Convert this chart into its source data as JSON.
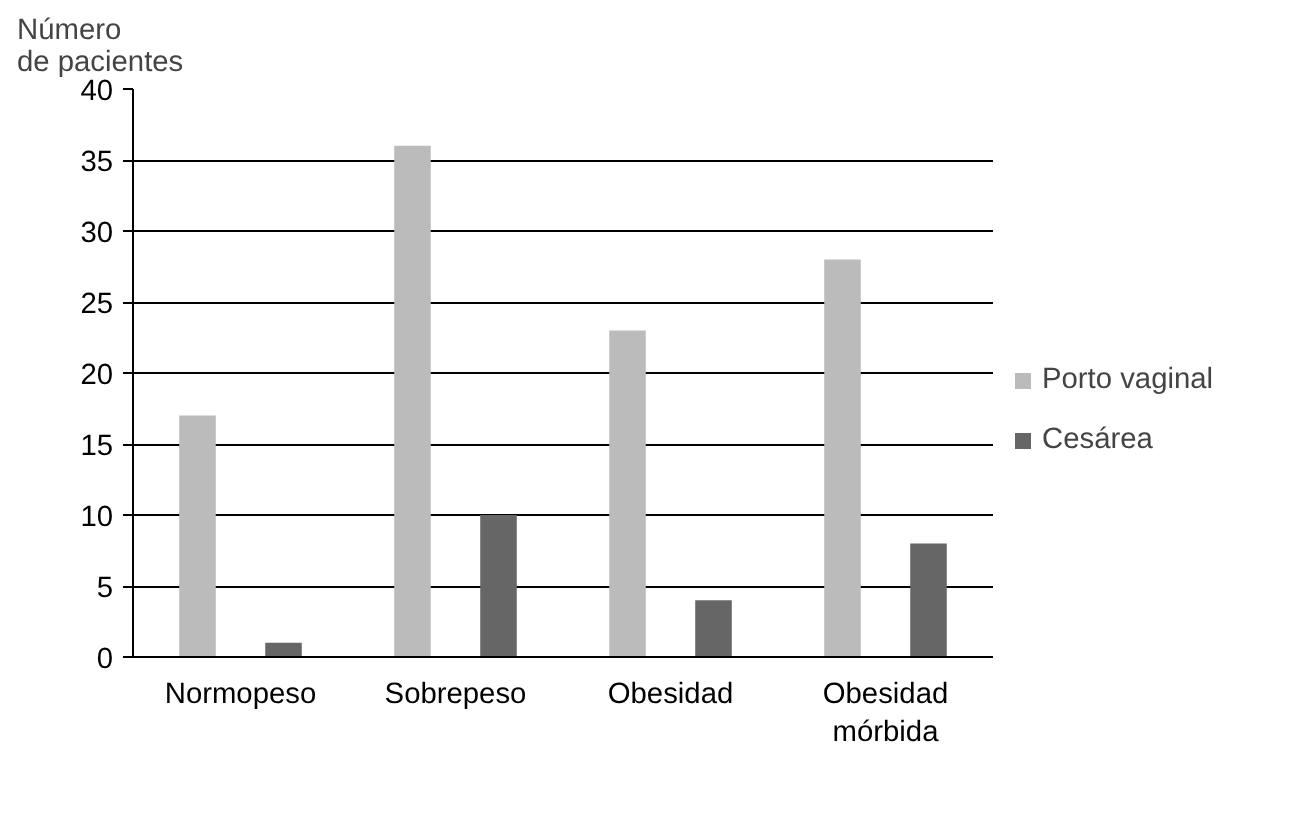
{
  "chart_data": {
    "type": "bar",
    "ylabel": "Número de pacientes",
    "categories": [
      "Normopeso",
      "Sobrepeso",
      "Obesidad",
      "Obesidad mórbida"
    ],
    "series": [
      {
        "name": "Porto vaginal",
        "color": "#bbbbbb",
        "values": [
          17,
          36,
          23,
          28
        ]
      },
      {
        "name": "Cesárea",
        "color": "#666666",
        "values": [
          1,
          10,
          4,
          8
        ]
      }
    ],
    "ylim": [
      0,
      40
    ],
    "yticks": [
      0,
      5,
      10,
      15,
      20,
      25,
      30,
      35,
      40
    ],
    "grid": "y",
    "legend": "right"
  }
}
